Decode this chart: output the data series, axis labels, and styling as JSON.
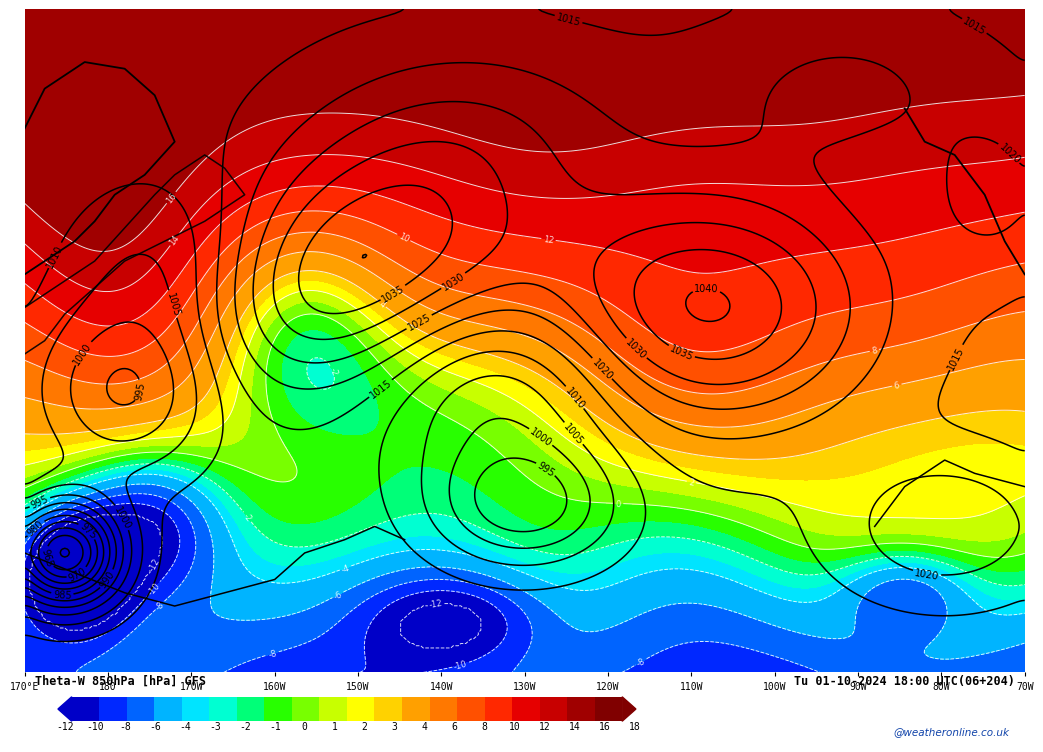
{
  "title_left": "Theta-W 850hPa [hPa] GFS",
  "title_right": "Tu 01-10-2024 18:00 UTC(06+204)",
  "colorbar_values": [
    -12,
    -10,
    -8,
    -6,
    -4,
    -3,
    -2,
    -1,
    0,
    1,
    2,
    3,
    4,
    6,
    8,
    10,
    12,
    14,
    16,
    18
  ],
  "colorbar_colors": [
    "#0000C8",
    "#0028FF",
    "#0064FF",
    "#00B4FF",
    "#00E4FF",
    "#00FFD2",
    "#00FF78",
    "#28FF00",
    "#78FF00",
    "#C8FF00",
    "#FFFF00",
    "#FFD200",
    "#FFA000",
    "#FF7800",
    "#FF5000",
    "#FF2800",
    "#E60000",
    "#C80000",
    "#A00000",
    "#800000"
  ],
  "background_color": "#ffffff",
  "watermark": "@weatheronline.co.uk",
  "x_tick_labels": [
    "170°E",
    "180",
    "170W",
    "160W",
    "150W",
    "140W",
    "130W",
    "120W",
    "110W",
    "100W",
    "90W",
    "80W",
    "70W"
  ],
  "colorbar_label_values": [
    -12,
    -10,
    -8,
    -6,
    -4,
    -3,
    -2,
    -1,
    0,
    1,
    2,
    3,
    4,
    6,
    8,
    10,
    12,
    14,
    16,
    18
  ],
  "figsize": [
    10.0,
    7.33
  ]
}
